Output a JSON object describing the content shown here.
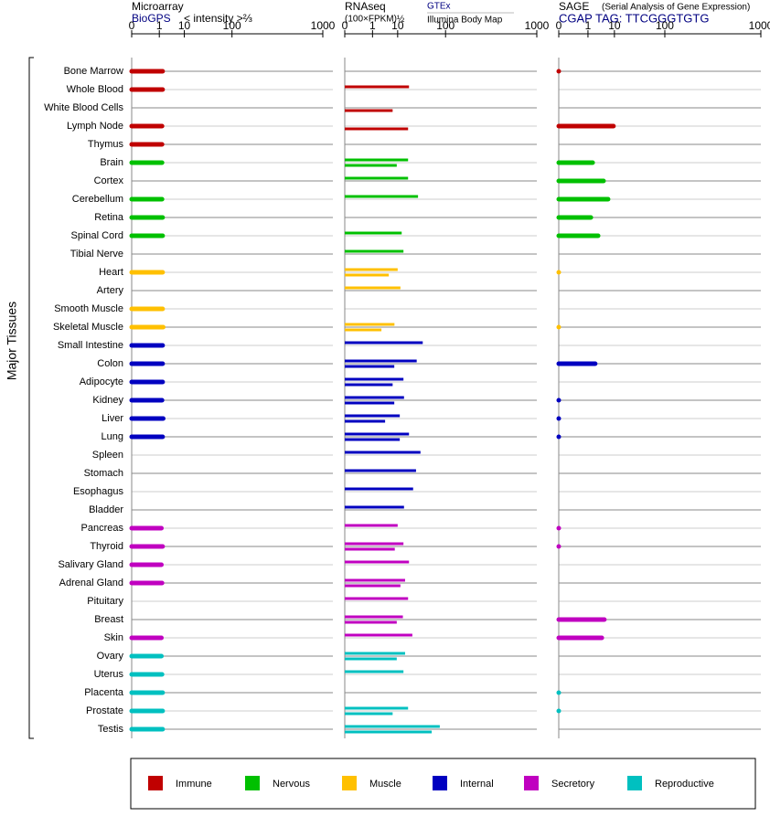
{
  "chart_data": {
    "type": "bar",
    "y_label": "Major Tissues",
    "categories": [
      "Bone Marrow",
      "Whole Blood",
      "White Blood Cells",
      "Lymph Node",
      "Thymus",
      "Brain",
      "Cortex",
      "Cerebellum",
      "Retina",
      "Spinal Cord",
      "Tibial Nerve",
      "Heart",
      "Artery",
      "Smooth Muscle",
      "Skeletal Muscle",
      "Small Intestine",
      "Colon",
      "Adipocyte",
      "Kidney",
      "Liver",
      "Lung",
      "Spleen",
      "Stomach",
      "Esophagus",
      "Bladder",
      "Pancreas",
      "Thyroid",
      "Salivary Gland",
      "Adrenal Gland",
      "Pituitary",
      "Breast",
      "Skin",
      "Ovary",
      "Uterus",
      "Placenta",
      "Prostate",
      "Testis"
    ],
    "groups": [
      {
        "name": "Immune",
        "color": "#c00000"
      },
      {
        "name": "Nervous",
        "color": "#00c000"
      },
      {
        "name": "Muscle",
        "color": "#ffc000"
      },
      {
        "name": "Internal",
        "color": "#0000c0"
      },
      {
        "name": "Secretory",
        "color": "#c000c0"
      },
      {
        "name": "Reproductive",
        "color": "#00c0c0"
      }
    ],
    "category_group": [
      0,
      0,
      0,
      0,
      0,
      1,
      1,
      1,
      1,
      1,
      1,
      2,
      2,
      2,
      2,
      3,
      3,
      3,
      3,
      3,
      3,
      3,
      3,
      3,
      3,
      4,
      4,
      4,
      4,
      4,
      4,
      4,
      5,
      5,
      5,
      5,
      5
    ],
    "panels": [
      {
        "title": "Microarray",
        "unit": "< intensity >⅔",
        "xlim": [
          0,
          1000
        ],
        "xticks": [
          0,
          1,
          10,
          100,
          1000
        ],
        "series": [
          {
            "name": "BioGPS",
            "values": [
              1.5,
              1.5,
              null,
              1.4,
              1.4,
              1.4,
              null,
              1.4,
              1.5,
              1.5,
              null,
              1.5,
              null,
              1.5,
              1.6,
              1.5,
              1.5,
              1.5,
              1.4,
              1.6,
              1.5,
              null,
              null,
              null,
              null,
              1.3,
              1.5,
              1.3,
              1.4,
              null,
              null,
              1.3,
              1.3,
              1.4,
              1.5,
              1.5,
              1.5
            ]
          }
        ]
      },
      {
        "title": "RNAseq",
        "unit": "(100×FPKM)½",
        "xlim": [
          0,
          1000
        ],
        "xticks": [
          0,
          1,
          10,
          100,
          1000
        ],
        "series": [
          {
            "name": "GTEx",
            "values": [
              null,
              20,
              null,
              null,
              null,
              19,
              19,
              32,
              null,
              13,
              14.5,
              10,
              12,
              null,
              8,
              40,
              30,
              14.5,
              15,
              11.5,
              20,
              36,
              29,
              25,
              15,
              10,
              14.5,
              20,
              16,
              19,
              14,
              24,
              16,
              14.5,
              null,
              19,
              81
            ]
          },
          {
            "name": "Illumina Body Map",
            "values": [
              null,
              null,
              7,
              19,
              null,
              9.4,
              null,
              null,
              null,
              null,
              null,
              5.2,
              null,
              null,
              2.7,
              null,
              7.9,
              7,
              7.9,
              3.8,
              11.5,
              null,
              null,
              null,
              null,
              null,
              8.2,
              null,
              12,
              null,
              9.4,
              null,
              9.4,
              null,
              null,
              7,
              59
            ]
          }
        ]
      },
      {
        "title": "SAGE",
        "note": "(Serial Analysis of Gene Expression)",
        "xlim": [
          0,
          1000
        ],
        "xticks": [
          0,
          1,
          10,
          100,
          1000
        ],
        "series": [
          {
            "name": "CGAP TAG: TTCGGGTGTG",
            "values": [
              0,
              null,
              null,
              9.4,
              null,
              1.7,
              4.6,
              6.5,
              1.4,
              2.9,
              null,
              0,
              null,
              null,
              0,
              null,
              2.2,
              null,
              0,
              0,
              0,
              null,
              null,
              null,
              null,
              0,
              0,
              null,
              null,
              null,
              4.9,
              4.0,
              null,
              null,
              0,
              0,
              null
            ]
          }
        ]
      }
    ]
  }
}
